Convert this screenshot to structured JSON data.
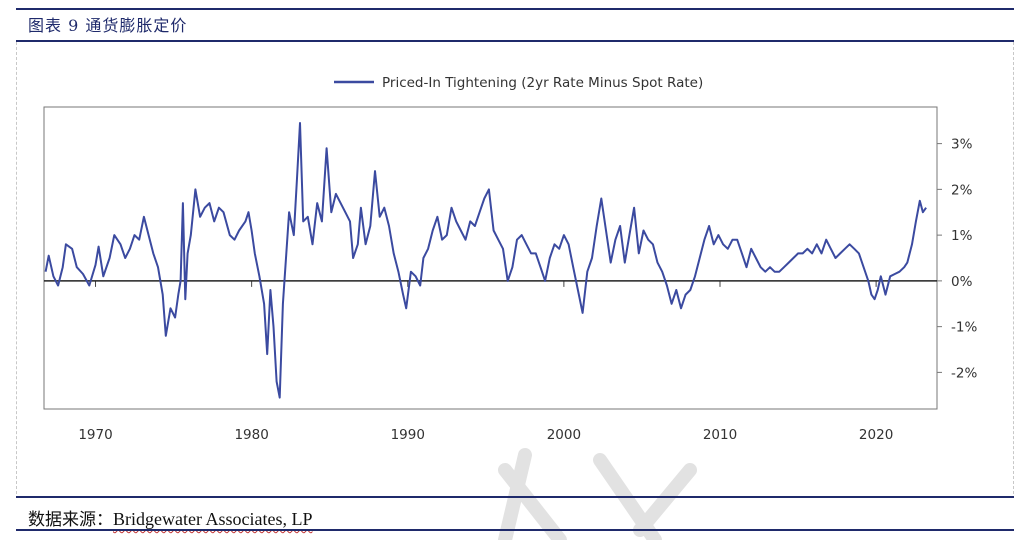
{
  "figure": {
    "title": "图表 9  通货膨胀定价",
    "source_label": "数据来源：",
    "source_org": "Bridgewater Associates, LP"
  },
  "chart_data": {
    "type": "line",
    "title": "",
    "xlabel": "",
    "ylabel": "",
    "legend": {
      "entries": [
        "Priced-In Tightening (2yr Rate Minus Spot Rate)"
      ],
      "placement": "top-center"
    },
    "x_ticks": [
      1970,
      1980,
      1990,
      2000,
      2010,
      2020
    ],
    "y_ticks": [
      "3%",
      "2%",
      "1%",
      "0%",
      "-1%",
      "-2%"
    ],
    "y_tick_values": [
      3,
      2,
      1,
      0,
      -1,
      -2
    ],
    "xlim": [
      1966.7,
      2023.9
    ],
    "ylim": [
      -2.8,
      3.8
    ],
    "axis_side_y": "right",
    "zero_line": true,
    "series": [
      {
        "name": "Priced-In Tightening (2yr Rate Minus Spot Rate)",
        "color": "#3b4aa0",
        "points": [
          [
            1966.8,
            0.2
          ],
          [
            1967.0,
            0.55
          ],
          [
            1967.3,
            0.1
          ],
          [
            1967.6,
            -0.1
          ],
          [
            1967.9,
            0.3
          ],
          [
            1968.1,
            0.8
          ],
          [
            1968.5,
            0.7
          ],
          [
            1968.8,
            0.3
          ],
          [
            1969.2,
            0.15
          ],
          [
            1969.6,
            -0.1
          ],
          [
            1970.0,
            0.35
          ],
          [
            1970.2,
            0.75
          ],
          [
            1970.5,
            0.1
          ],
          [
            1970.9,
            0.5
          ],
          [
            1971.2,
            1.0
          ],
          [
            1971.6,
            0.8
          ],
          [
            1971.9,
            0.5
          ],
          [
            1972.2,
            0.7
          ],
          [
            1972.5,
            1.0
          ],
          [
            1972.8,
            0.9
          ],
          [
            1973.1,
            1.4
          ],
          [
            1973.4,
            1.0
          ],
          [
            1973.7,
            0.6
          ],
          [
            1974.0,
            0.3
          ],
          [
            1974.3,
            -0.3
          ],
          [
            1974.5,
            -1.2
          ],
          [
            1974.8,
            -0.6
          ],
          [
            1975.1,
            -0.8
          ],
          [
            1975.3,
            -0.3
          ],
          [
            1975.45,
            0.0
          ],
          [
            1975.6,
            1.7
          ],
          [
            1975.75,
            -0.4
          ],
          [
            1975.9,
            0.6
          ],
          [
            1976.1,
            1.0
          ],
          [
            1976.4,
            2.0
          ],
          [
            1976.7,
            1.4
          ],
          [
            1977.0,
            1.6
          ],
          [
            1977.3,
            1.7
          ],
          [
            1977.6,
            1.3
          ],
          [
            1977.9,
            1.6
          ],
          [
            1978.2,
            1.5
          ],
          [
            1978.6,
            1.0
          ],
          [
            1978.9,
            0.9
          ],
          [
            1979.2,
            1.1
          ],
          [
            1979.6,
            1.3
          ],
          [
            1979.8,
            1.5
          ],
          [
            1980.0,
            1.1
          ],
          [
            1980.2,
            0.6
          ],
          [
            1980.5,
            0.1
          ],
          [
            1980.8,
            -0.5
          ],
          [
            1981.0,
            -1.6
          ],
          [
            1981.2,
            -0.2
          ],
          [
            1981.4,
            -1.0
          ],
          [
            1981.6,
            -2.2
          ],
          [
            1981.8,
            -2.55
          ],
          [
            1982.0,
            -0.5
          ],
          [
            1982.2,
            0.5
          ],
          [
            1982.4,
            1.5
          ],
          [
            1982.7,
            1.0
          ],
          [
            1982.9,
            2.2
          ],
          [
            1983.1,
            3.45
          ],
          [
            1983.3,
            1.3
          ],
          [
            1983.6,
            1.4
          ],
          [
            1983.9,
            0.8
          ],
          [
            1984.2,
            1.7
          ],
          [
            1984.5,
            1.3
          ],
          [
            1984.8,
            2.9
          ],
          [
            1985.1,
            1.5
          ],
          [
            1985.4,
            1.9
          ],
          [
            1985.7,
            1.7
          ],
          [
            1986.0,
            1.5
          ],
          [
            1986.3,
            1.3
          ],
          [
            1986.5,
            0.5
          ],
          [
            1986.8,
            0.8
          ],
          [
            1987.0,
            1.6
          ],
          [
            1987.3,
            0.8
          ],
          [
            1987.6,
            1.2
          ],
          [
            1987.9,
            2.4
          ],
          [
            1988.2,
            1.4
          ],
          [
            1988.5,
            1.6
          ],
          [
            1988.8,
            1.2
          ],
          [
            1989.1,
            0.6
          ],
          [
            1989.4,
            0.2
          ],
          [
            1989.7,
            -0.3
          ],
          [
            1989.9,
            -0.6
          ],
          [
            1990.2,
            0.2
          ],
          [
            1990.5,
            0.1
          ],
          [
            1990.8,
            -0.1
          ],
          [
            1991.0,
            0.5
          ],
          [
            1991.3,
            0.7
          ],
          [
            1991.6,
            1.1
          ],
          [
            1991.9,
            1.4
          ],
          [
            1992.2,
            0.9
          ],
          [
            1992.5,
            1.0
          ],
          [
            1992.8,
            1.6
          ],
          [
            1993.1,
            1.3
          ],
          [
            1993.4,
            1.1
          ],
          [
            1993.7,
            0.9
          ],
          [
            1994.0,
            1.3
          ],
          [
            1994.3,
            1.2
          ],
          [
            1994.6,
            1.5
          ],
          [
            1994.9,
            1.8
          ],
          [
            1995.2,
            2.0
          ],
          [
            1995.5,
            1.1
          ],
          [
            1995.8,
            0.9
          ],
          [
            1996.1,
            0.7
          ],
          [
            1996.4,
            0.0
          ],
          [
            1996.7,
            0.3
          ],
          [
            1997.0,
            0.9
          ],
          [
            1997.3,
            1.0
          ],
          [
            1997.6,
            0.8
          ],
          [
            1997.9,
            0.6
          ],
          [
            1998.2,
            0.6
          ],
          [
            1998.5,
            0.3
          ],
          [
            1998.8,
            0.0
          ],
          [
            1999.1,
            0.5
          ],
          [
            1999.4,
            0.8
          ],
          [
            1999.7,
            0.7
          ],
          [
            2000.0,
            1.0
          ],
          [
            2000.3,
            0.8
          ],
          [
            2000.6,
            0.3
          ],
          [
            2000.9,
            -0.2
          ],
          [
            2001.2,
            -0.7
          ],
          [
            2001.5,
            0.2
          ],
          [
            2001.8,
            0.5
          ],
          [
            2002.1,
            1.2
          ],
          [
            2002.4,
            1.8
          ],
          [
            2002.7,
            1.1
          ],
          [
            2003.0,
            0.4
          ],
          [
            2003.3,
            0.9
          ],
          [
            2003.6,
            1.2
          ],
          [
            2003.9,
            0.4
          ],
          [
            2004.2,
            1.0
          ],
          [
            2004.5,
            1.6
          ],
          [
            2004.8,
            0.6
          ],
          [
            2005.1,
            1.1
          ],
          [
            2005.4,
            0.9
          ],
          [
            2005.7,
            0.8
          ],
          [
            2006.0,
            0.4
          ],
          [
            2006.3,
            0.2
          ],
          [
            2006.6,
            -0.1
          ],
          [
            2006.9,
            -0.5
          ],
          [
            2007.2,
            -0.2
          ],
          [
            2007.5,
            -0.6
          ],
          [
            2007.8,
            -0.3
          ],
          [
            2008.1,
            -0.2
          ],
          [
            2008.4,
            0.1
          ],
          [
            2008.7,
            0.5
          ],
          [
            2009.0,
            0.9
          ],
          [
            2009.3,
            1.2
          ],
          [
            2009.6,
            0.8
          ],
          [
            2009.9,
            1.0
          ],
          [
            2010.2,
            0.8
          ],
          [
            2010.5,
            0.7
          ],
          [
            2010.8,
            0.9
          ],
          [
            2011.1,
            0.9
          ],
          [
            2011.4,
            0.6
          ],
          [
            2011.7,
            0.3
          ],
          [
            2012.0,
            0.7
          ],
          [
            2012.3,
            0.5
          ],
          [
            2012.6,
            0.3
          ],
          [
            2012.9,
            0.2
          ],
          [
            2013.2,
            0.3
          ],
          [
            2013.5,
            0.2
          ],
          [
            2013.8,
            0.2
          ],
          [
            2014.1,
            0.3
          ],
          [
            2014.4,
            0.4
          ],
          [
            2014.7,
            0.5
          ],
          [
            2015.0,
            0.6
          ],
          [
            2015.3,
            0.6
          ],
          [
            2015.6,
            0.7
          ],
          [
            2015.9,
            0.6
          ],
          [
            2016.2,
            0.8
          ],
          [
            2016.5,
            0.6
          ],
          [
            2016.8,
            0.9
          ],
          [
            2017.1,
            0.7
          ],
          [
            2017.4,
            0.5
          ],
          [
            2017.7,
            0.6
          ],
          [
            2018.0,
            0.7
          ],
          [
            2018.3,
            0.8
          ],
          [
            2018.6,
            0.7
          ],
          [
            2018.9,
            0.6
          ],
          [
            2019.2,
            0.3
          ],
          [
            2019.5,
            0.0
          ],
          [
            2019.7,
            -0.3
          ],
          [
            2019.9,
            -0.4
          ],
          [
            2020.1,
            -0.2
          ],
          [
            2020.3,
            0.1
          ],
          [
            2020.6,
            -0.3
          ],
          [
            2020.9,
            0.1
          ],
          [
            2021.2,
            0.15
          ],
          [
            2021.5,
            0.2
          ],
          [
            2021.8,
            0.3
          ],
          [
            2022.0,
            0.4
          ],
          [
            2022.3,
            0.8
          ],
          [
            2022.55,
            1.3
          ],
          [
            2022.8,
            1.75
          ],
          [
            2023.0,
            1.5
          ],
          [
            2023.2,
            1.6
          ]
        ]
      }
    ]
  }
}
